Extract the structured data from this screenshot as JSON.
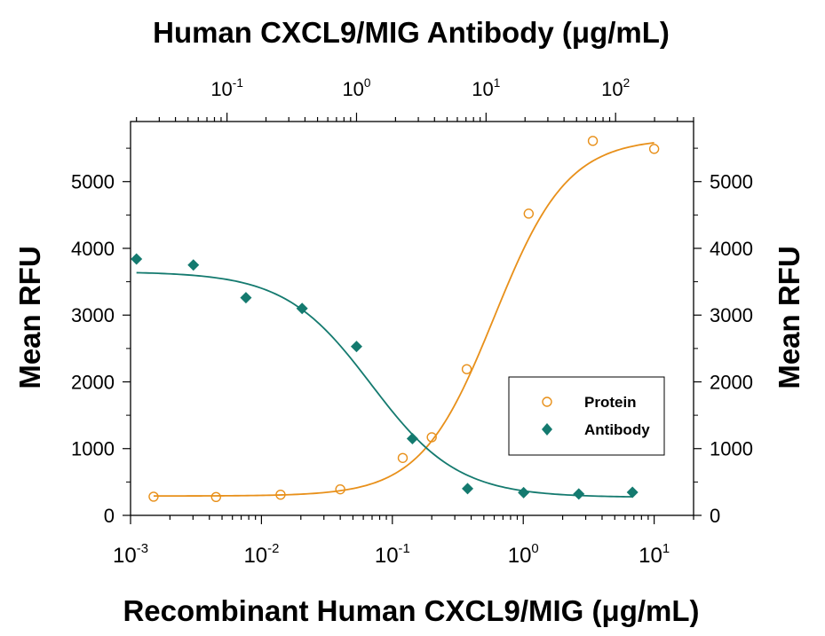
{
  "chart_data": {
    "type": "scatter",
    "title": "",
    "top_axis": {
      "label": "Human CXCL9/MIG Antibody (μg/mL)",
      "scale": "log",
      "range": [
        0.018,
        400
      ],
      "ticks": [
        {
          "base": "10",
          "exp": "-1"
        },
        {
          "base": "10",
          "exp": "0"
        },
        {
          "base": "10",
          "exp": "1"
        },
        {
          "base": "10",
          "exp": "2"
        }
      ]
    },
    "x_axis": {
      "label": "Recombinant Human CXCL9/MIG (μg/mL)",
      "scale": "log",
      "range": [
        0.001,
        20
      ],
      "ticks": [
        {
          "base": "10",
          "exp": "-3"
        },
        {
          "base": "10",
          "exp": "-2"
        },
        {
          "base": "10",
          "exp": "-1"
        },
        {
          "base": "10",
          "exp": "0"
        },
        {
          "base": "10",
          "exp": "1"
        }
      ]
    },
    "y_axis": {
      "label": "Mean RFU",
      "range": [
        0,
        5900
      ],
      "ticks": [
        "0",
        "1000",
        "2000",
        "3000",
        "4000",
        "5000"
      ]
    },
    "y2_axis": {
      "label": "Mean RFU",
      "ticks": [
        "0",
        "1000",
        "2000",
        "3000",
        "4000",
        "5000"
      ]
    },
    "legend": {
      "position": "bottom-right"
    },
    "series": [
      {
        "name": "Protein",
        "axis": "bottom",
        "marker": "open-circle",
        "color": "#e8901a",
        "points": [
          {
            "x": 0.0015,
            "y": 280
          },
          {
            "x": 0.0045,
            "y": 275
          },
          {
            "x": 0.014,
            "y": 310
          },
          {
            "x": 0.04,
            "y": 390
          },
          {
            "x": 0.12,
            "y": 860
          },
          {
            "x": 0.2,
            "y": 1170
          },
          {
            "x": 0.37,
            "y": 2190
          },
          {
            "x": 1.1,
            "y": 4520
          },
          {
            "x": 3.4,
            "y": 5610
          },
          {
            "x": 10,
            "y": 5490
          }
        ],
        "fit": {
          "bottom": 290,
          "top": 5650,
          "ec50": 0.6,
          "hill": 1.55
        }
      },
      {
        "name": "Antibody",
        "axis": "top",
        "marker": "filled-diamond",
        "color": "#147a6f",
        "points": [
          {
            "x": 0.02,
            "y": 3840
          },
          {
            "x": 0.055,
            "y": 3750
          },
          {
            "x": 0.14,
            "y": 3260
          },
          {
            "x": 0.38,
            "y": 3100
          },
          {
            "x": 1.0,
            "y": 2530
          },
          {
            "x": 2.7,
            "y": 1150
          },
          {
            "x": 7.2,
            "y": 400
          },
          {
            "x": 19.5,
            "y": 340
          },
          {
            "x": 52,
            "y": 320
          },
          {
            "x": 135,
            "y": 345
          }
        ],
        "fit": {
          "top": 3650,
          "bottom": 270,
          "ic50": 1.3,
          "hill": 1.3
        }
      }
    ]
  }
}
